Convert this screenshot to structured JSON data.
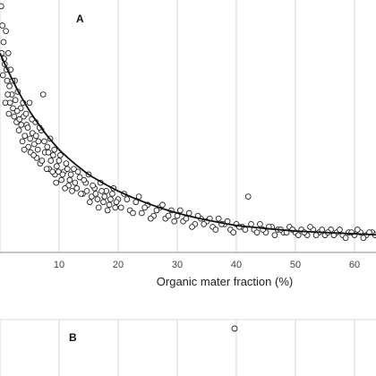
{
  "chart_data": {
    "type": "scatter",
    "panel_a_label": "A",
    "panel_b_label": "B",
    "xlabel": "Organic mater fraction (%)",
    "ylabel": "",
    "x_ticks": [
      10,
      20,
      30,
      40,
      50,
      60
    ],
    "xlim": [
      0,
      65
    ],
    "ylim": [
      0,
      1
    ],
    "grid": true,
    "fit_line": {
      "type": "decaying curve",
      "points": [
        [
          0,
          0.7
        ],
        [
          5,
          0.49
        ],
        [
          10,
          0.35
        ],
        [
          15,
          0.26
        ],
        [
          20,
          0.2
        ],
        [
          30,
          0.12
        ],
        [
          40,
          0.075
        ],
        [
          50,
          0.055
        ],
        [
          60,
          0.045
        ],
        [
          65,
          0.04
        ]
      ]
    },
    "series": [
      {
        "points": [
          [
            0.2,
            0.87
          ],
          [
            0.4,
            0.8
          ],
          [
            0.6,
            0.74
          ],
          [
            0.8,
            0.66
          ],
          [
            1.0,
            0.78
          ],
          [
            1.2,
            0.6
          ],
          [
            1.4,
            0.7
          ],
          [
            1.6,
            0.58
          ],
          [
            1.8,
            0.64
          ],
          [
            2.0,
            0.55
          ],
          [
            0.5,
            0.62
          ],
          [
            0.9,
            0.52
          ],
          [
            1.5,
            0.48
          ],
          [
            2.2,
            0.5
          ],
          [
            2.5,
            0.6
          ],
          [
            2.8,
            0.45
          ],
          [
            3.0,
            0.56
          ],
          [
            3.2,
            0.42
          ],
          [
            3.5,
            0.5
          ],
          [
            3.8,
            0.38
          ],
          [
            4.0,
            0.47
          ],
          [
            4.2,
            0.4
          ],
          [
            4.5,
            0.44
          ],
          [
            4.8,
            0.36
          ],
          [
            5.0,
            0.52
          ],
          [
            5.2,
            0.34
          ],
          [
            5.5,
            0.41
          ],
          [
            5.8,
            0.37
          ],
          [
            6.0,
            0.45
          ],
          [
            6.2,
            0.32
          ],
          [
            6.5,
            0.38
          ],
          [
            6.8,
            0.3
          ],
          [
            7.0,
            0.42
          ],
          [
            7.3,
            0.55
          ],
          [
            7.6,
            0.34
          ],
          [
            8.0,
            0.36
          ],
          [
            8.3,
            0.28
          ],
          [
            8.6,
            0.31
          ],
          [
            9.0,
            0.33
          ],
          [
            9.3,
            0.26
          ],
          [
            9.6,
            0.29
          ],
          [
            10.0,
            0.31
          ],
          [
            10.4,
            0.24
          ],
          [
            10.8,
            0.27
          ],
          [
            11.2,
            0.3
          ],
          [
            11.6,
            0.22
          ],
          [
            12.0,
            0.26
          ],
          [
            12.5,
            0.28
          ],
          [
            13.0,
            0.21
          ],
          [
            13.5,
            0.25
          ],
          [
            14.0,
            0.19
          ],
          [
            14.5,
            0.23
          ],
          [
            15.0,
            0.26
          ],
          [
            15.5,
            0.18
          ],
          [
            16.0,
            0.21
          ],
          [
            16.5,
            0.17
          ],
          [
            17.0,
            0.23
          ],
          [
            17.5,
            0.16
          ],
          [
            18.0,
            0.2
          ],
          [
            18.5,
            0.15
          ],
          [
            19.0,
            0.19
          ],
          [
            19.5,
            0.14
          ],
          [
            20.0,
            0.17
          ],
          [
            21.0,
            0.19
          ],
          [
            22.0,
            0.13
          ],
          [
            23.0,
            0.16
          ],
          [
            24.0,
            0.12
          ],
          [
            25.0,
            0.15
          ],
          [
            26.0,
            0.11
          ],
          [
            27.0,
            0.14
          ],
          [
            28.0,
            0.1
          ],
          [
            29.0,
            0.13
          ],
          [
            30.0,
            0.11
          ],
          [
            31.0,
            0.09
          ],
          [
            32.0,
            0.12
          ],
          [
            33.0,
            0.08
          ],
          [
            34.0,
            0.1
          ],
          [
            35.0,
            0.09
          ],
          [
            36.0,
            0.07
          ],
          [
            37.0,
            0.1
          ],
          [
            38.0,
            0.08
          ],
          [
            39.0,
            0.06
          ],
          [
            40.0,
            0.08
          ],
          [
            41.0,
            0.07
          ],
          [
            42.0,
            0.18
          ],
          [
            43.0,
            0.06
          ],
          [
            44.0,
            0.08
          ],
          [
            45.0,
            0.05
          ],
          [
            46.0,
            0.07
          ],
          [
            47.0,
            0.06
          ],
          [
            48.0,
            0.05
          ],
          [
            49.0,
            0.07
          ],
          [
            50.0,
            0.05
          ],
          [
            51.0,
            0.06
          ],
          [
            52.0,
            0.04
          ],
          [
            53.0,
            0.06
          ],
          [
            54.0,
            0.05
          ],
          [
            55.0,
            0.04
          ],
          [
            56.0,
            0.06
          ],
          [
            57.0,
            0.05
          ],
          [
            58.0,
            0.04
          ],
          [
            59.0,
            0.05
          ],
          [
            60.0,
            0.04
          ],
          [
            61.0,
            0.05
          ],
          [
            62.0,
            0.04
          ],
          [
            63.0,
            0.05
          ],
          [
            64.0,
            0.03
          ],
          [
            64.5,
            0.05
          ],
          [
            0.3,
            0.7
          ],
          [
            0.7,
            0.68
          ],
          [
            1.1,
            0.64
          ],
          [
            1.3,
            0.55
          ],
          [
            1.7,
            0.52
          ],
          [
            2.1,
            0.6
          ],
          [
            2.4,
            0.47
          ],
          [
            2.6,
            0.53
          ],
          [
            2.9,
            0.49
          ],
          [
            3.3,
            0.46
          ],
          [
            3.6,
            0.44
          ],
          [
            3.9,
            0.52
          ],
          [
            4.1,
            0.35
          ],
          [
            4.4,
            0.48
          ],
          [
            4.7,
            0.43
          ],
          [
            5.1,
            0.39
          ],
          [
            5.4,
            0.46
          ],
          [
            5.7,
            0.33
          ],
          [
            6.1,
            0.4
          ],
          [
            6.4,
            0.35
          ],
          [
            6.7,
            0.43
          ],
          [
            7.1,
            0.31
          ],
          [
            7.5,
            0.38
          ],
          [
            7.9,
            0.28
          ],
          [
            8.2,
            0.34
          ],
          [
            8.5,
            0.39
          ],
          [
            8.9,
            0.27
          ],
          [
            9.2,
            0.35
          ],
          [
            9.5,
            0.23
          ],
          [
            9.9,
            0.27
          ],
          [
            10.2,
            0.33
          ],
          [
            10.6,
            0.26
          ],
          [
            11.0,
            0.21
          ],
          [
            11.4,
            0.28
          ],
          [
            11.8,
            0.24
          ],
          [
            12.2,
            0.2
          ],
          [
            12.7,
            0.23
          ],
          [
            13.2,
            0.27
          ],
          [
            13.7,
            0.19
          ],
          [
            14.2,
            0.24
          ],
          [
            14.7,
            0.2
          ],
          [
            15.2,
            0.16
          ],
          [
            15.7,
            0.22
          ],
          [
            16.2,
            0.19
          ],
          [
            16.7,
            0.14
          ],
          [
            17.2,
            0.2
          ],
          [
            17.7,
            0.18
          ],
          [
            18.2,
            0.13
          ],
          [
            18.7,
            0.17
          ],
          [
            19.2,
            0.21
          ],
          [
            19.7,
            0.16
          ],
          [
            20.5,
            0.14
          ],
          [
            21.5,
            0.17
          ],
          [
            22.5,
            0.12
          ],
          [
            23.5,
            0.18
          ],
          [
            24.5,
            0.14
          ],
          [
            25.5,
            0.1
          ],
          [
            26.5,
            0.13
          ],
          [
            27.5,
            0.15
          ],
          [
            28.5,
            0.11
          ],
          [
            29.5,
            0.09
          ],
          [
            30.5,
            0.13
          ],
          [
            31.5,
            0.1
          ],
          [
            32.5,
            0.07
          ],
          [
            33.5,
            0.11
          ],
          [
            34.5,
            0.08
          ],
          [
            35.5,
            0.1
          ],
          [
            36.5,
            0.06
          ],
          [
            37.5,
            0.08
          ],
          [
            38.5,
            0.09
          ],
          [
            39.5,
            0.05
          ],
          [
            40.5,
            0.07
          ],
          [
            41.5,
            0.06
          ],
          [
            42.5,
            0.08
          ],
          [
            43.5,
            0.05
          ],
          [
            44.5,
            0.06
          ],
          [
            45.5,
            0.07
          ],
          [
            46.5,
            0.04
          ],
          [
            47.5,
            0.06
          ],
          [
            48.5,
            0.05
          ],
          [
            49.5,
            0.06
          ],
          [
            50.5,
            0.04
          ],
          [
            51.5,
            0.05
          ],
          [
            52.5,
            0.07
          ],
          [
            53.5,
            0.04
          ],
          [
            54.5,
            0.06
          ],
          [
            55.5,
            0.05
          ],
          [
            56.5,
            0.04
          ],
          [
            57.5,
            0.06
          ],
          [
            58.5,
            0.03
          ],
          [
            59.5,
            0.05
          ],
          [
            60.5,
            0.06
          ],
          [
            61.5,
            0.03
          ],
          [
            62.5,
            0.05
          ],
          [
            63.5,
            0.04
          ],
          [
            64.2,
            0.06
          ]
        ]
      }
    ]
  }
}
